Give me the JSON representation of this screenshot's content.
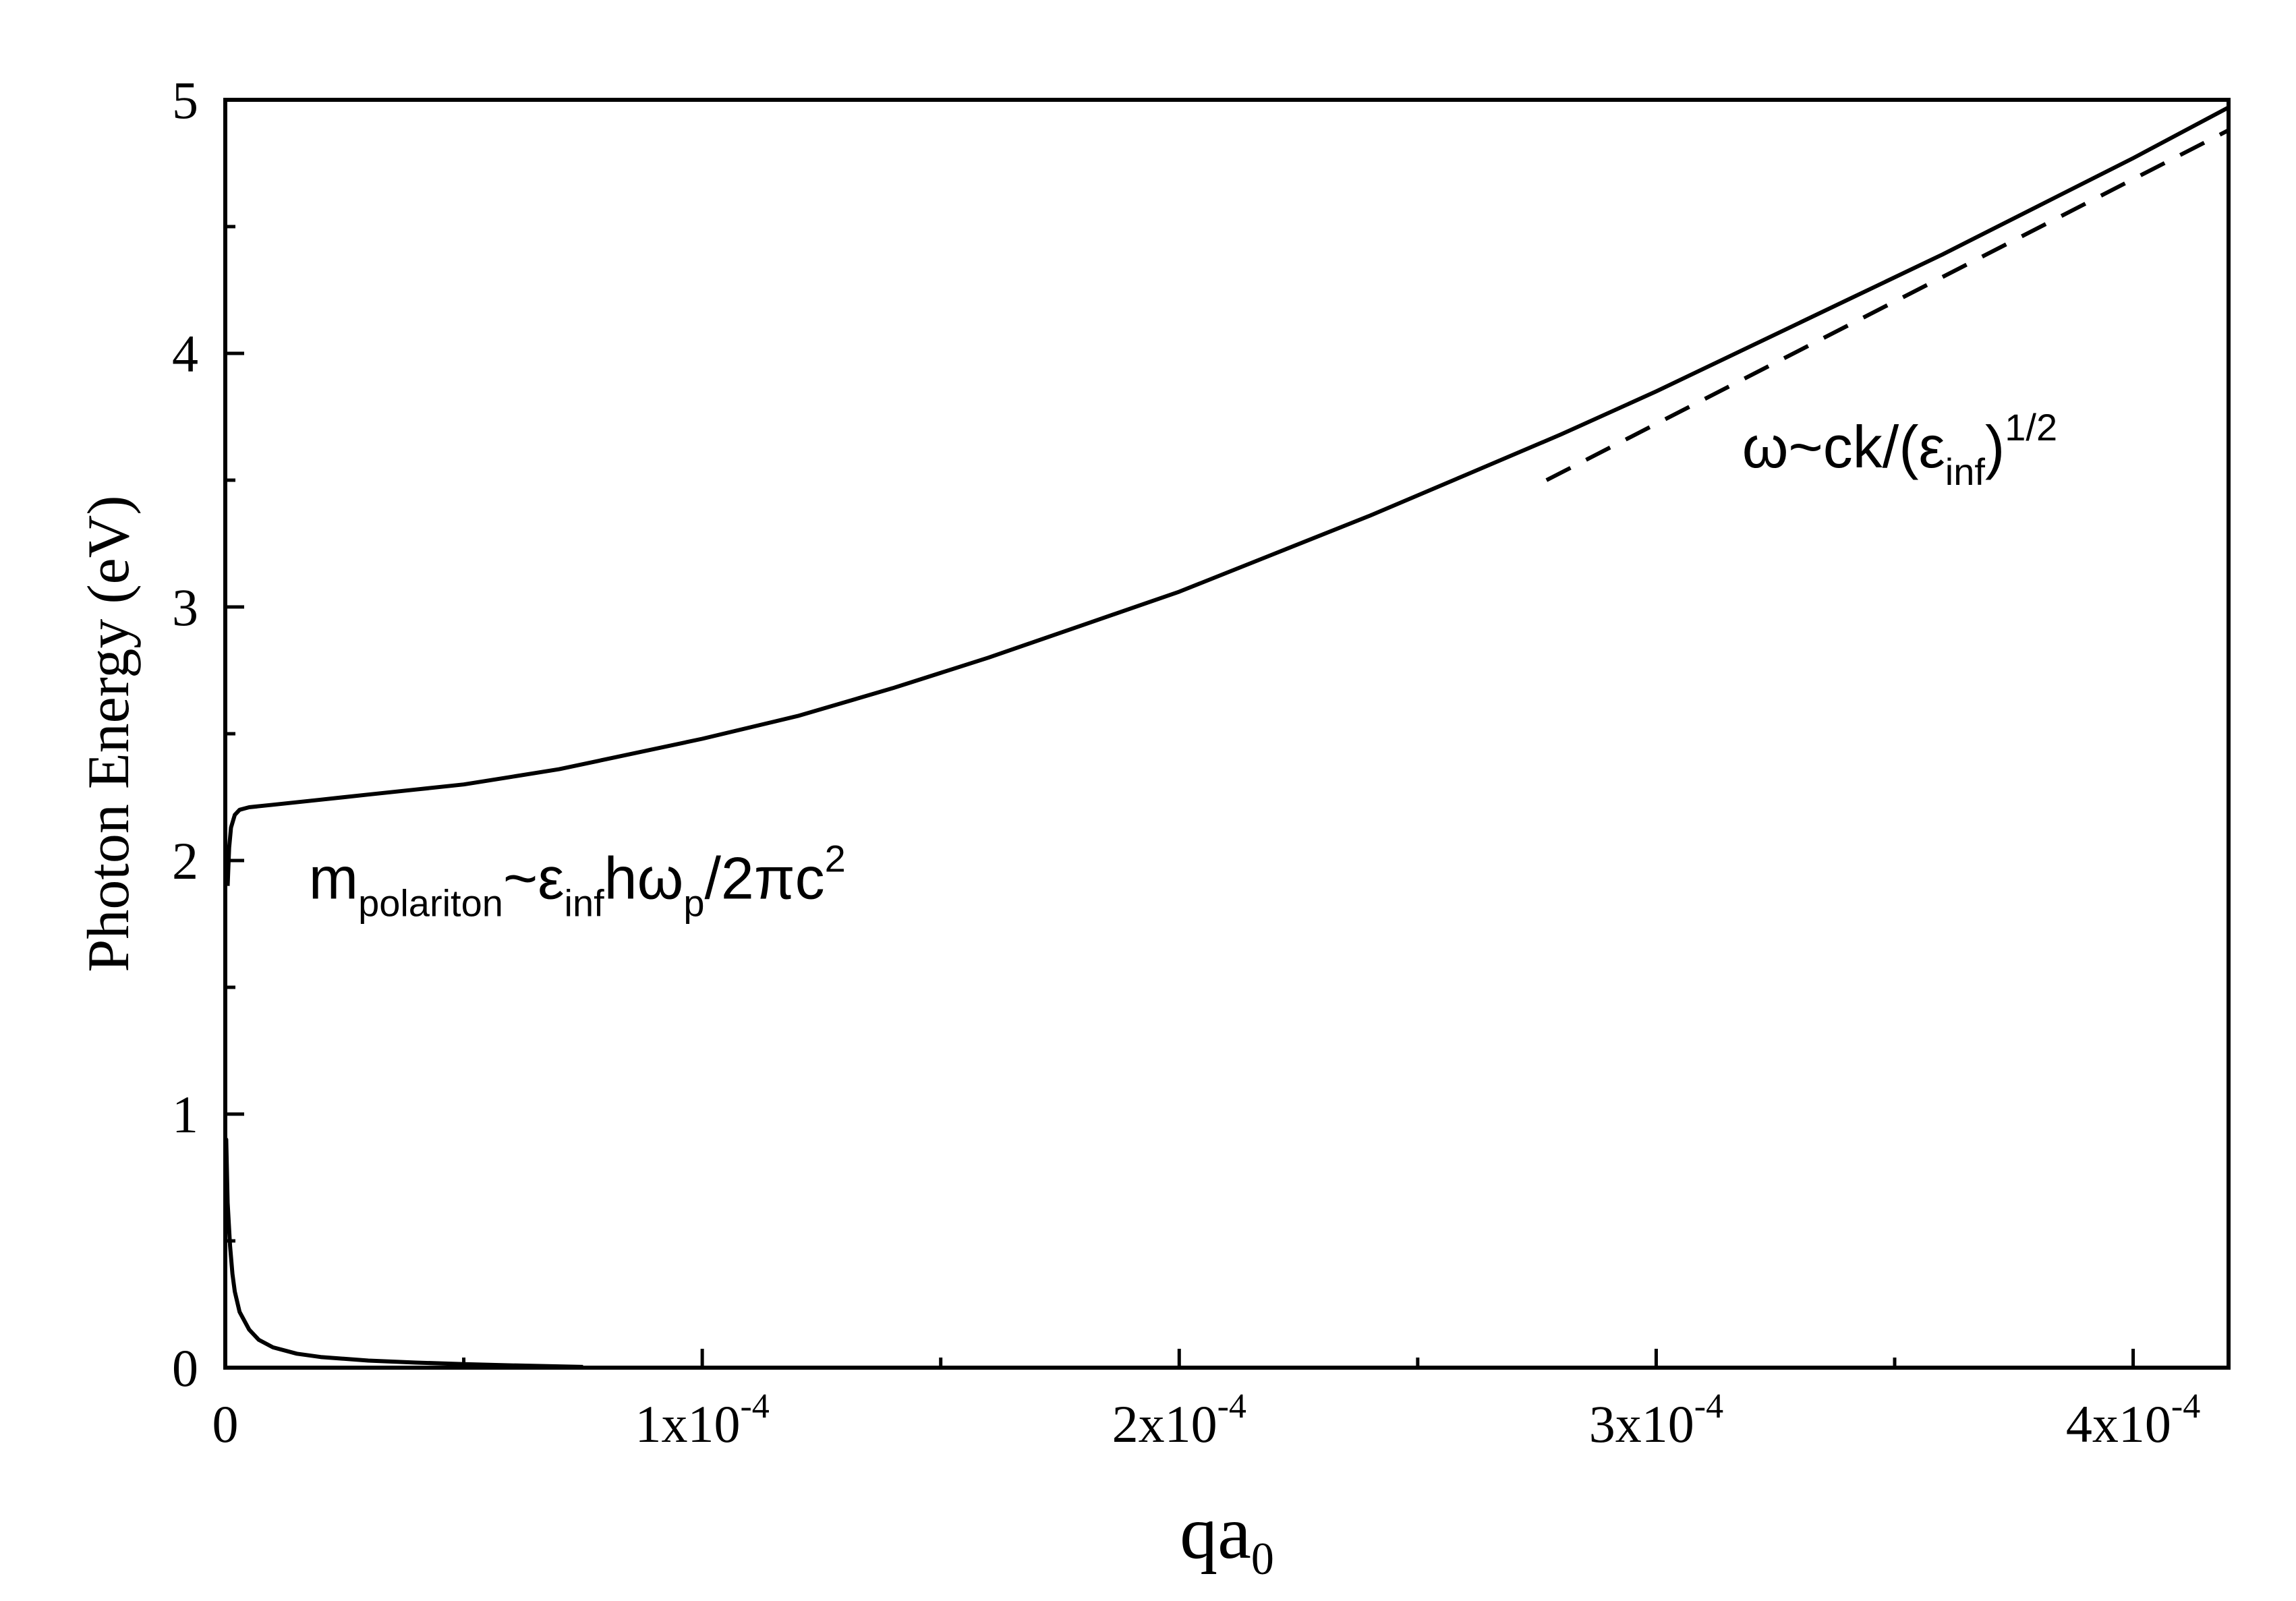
{
  "chart_data": {
    "type": "line",
    "title": "",
    "xlabel": "qa",
    "xlabel_sub": "0",
    "ylabel": "Photon Energy (eV)",
    "xlim": [
      0,
      0.00042
    ],
    "ylim": [
      0,
      5
    ],
    "grid": false,
    "legend": "none",
    "x_ticks": [
      {
        "value": 0,
        "mantissa": "0",
        "exp": ""
      },
      {
        "value": 0.0001,
        "mantissa": "1x10",
        "exp": "-4"
      },
      {
        "value": 0.0002,
        "mantissa": "2x10",
        "exp": "-4"
      },
      {
        "value": 0.0003,
        "mantissa": "3x10",
        "exp": "-4"
      },
      {
        "value": 0.0004,
        "mantissa": "4x10",
        "exp": "-4"
      }
    ],
    "x_minor_ticks": [
      5e-05,
      0.00015,
      0.00025,
      0.00035
    ],
    "y_ticks": [
      {
        "value": 0,
        "label": "0"
      },
      {
        "value": 1,
        "label": "1"
      },
      {
        "value": 2,
        "label": "2"
      },
      {
        "value": 3,
        "label": "3"
      },
      {
        "value": 4,
        "label": "4"
      },
      {
        "value": 5,
        "label": "5"
      }
    ],
    "y_minor_ticks": [
      0.5,
      1.5,
      2.5,
      3.5,
      4.5
    ],
    "series": [
      {
        "style": "solid",
        "x": [
          0,
          2e-07,
          5e-07,
          1e-06,
          1.5e-06,
          2e-06,
          3e-06,
          5e-06,
          7e-06,
          1e-05,
          1.5e-05,
          2e-05,
          3e-05,
          4e-05,
          5e-05,
          6e-05,
          7e-05,
          7.5e-05
        ],
        "y": [
          0.7,
          0.9,
          0.65,
          0.48,
          0.37,
          0.3,
          0.22,
          0.15,
          0.11,
          0.08,
          0.055,
          0.042,
          0.028,
          0.02,
          0.014,
          0.009,
          0.005,
          0.003
        ]
      },
      {
        "style": "solid",
        "x": [
          5e-07,
          8e-07,
          1.2e-06,
          2e-06,
          3e-06,
          4e-06,
          5e-06,
          1e-05,
          2e-05,
          3e-05,
          4e-05,
          5e-05,
          6e-05,
          7e-05,
          8e-05,
          0.0001,
          0.00012,
          0.00014,
          0.00016,
          0.00018,
          0.0002,
          0.00022,
          0.00024,
          0.00026,
          0.00028,
          0.0003,
          0.00032,
          0.00034,
          0.00036,
          0.00038,
          0.0004,
          0.00042
        ],
        "y": [
          1.9,
          2.05,
          2.13,
          2.18,
          2.2,
          2.205,
          2.21,
          2.22,
          2.24,
          2.26,
          2.28,
          2.3,
          2.33,
          2.36,
          2.4,
          2.48,
          2.57,
          2.68,
          2.8,
          2.93,
          3.06,
          3.21,
          3.36,
          3.52,
          3.68,
          3.85,
          4.03,
          4.21,
          4.39,
          4.58,
          4.77,
          4.97
        ]
      },
      {
        "style": "dashed",
        "x": [
          0.000277,
          0.00042
        ],
        "y": [
          3.5,
          4.88
        ]
      }
    ],
    "annotations": [
      {
        "value_x": 1.75e-05,
        "value_y": 1.85,
        "parts": [
          {
            "text": "m",
            "shift": "base"
          },
          {
            "text": "polariton",
            "shift": "sub"
          },
          {
            "text": "~ε",
            "shift": "base"
          },
          {
            "text": "inf",
            "shift": "sub"
          },
          {
            "text": "hω",
            "shift": "base"
          },
          {
            "text": "p",
            "shift": "sub"
          },
          {
            "text": "/2πc",
            "shift": "base"
          },
          {
            "text": "2",
            "shift": "super"
          }
        ]
      },
      {
        "value_x": 0.000318,
        "value_y": 3.55,
        "parts": [
          {
            "text": "ω~ck/(ε",
            "shift": "base"
          },
          {
            "text": "inf",
            "shift": "sub"
          },
          {
            "text": ")",
            "shift": "base"
          },
          {
            "text": "1/2",
            "shift": "super"
          }
        ]
      }
    ]
  }
}
